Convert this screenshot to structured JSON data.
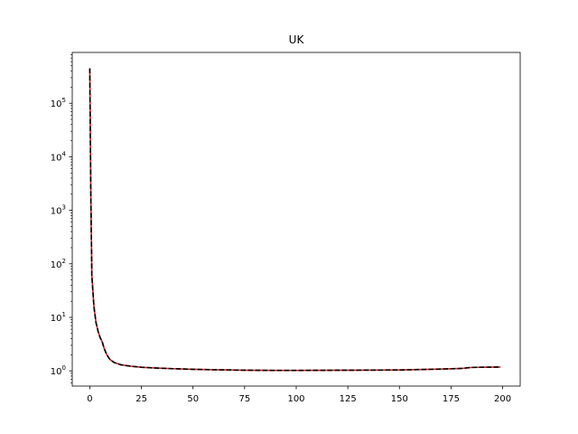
{
  "chart_data": {
    "type": "line",
    "title": "UK",
    "xlabel": "",
    "ylabel": "",
    "x_scale": "linear",
    "y_scale": "log",
    "xlim": [
      -8.5,
      208.5
    ],
    "ylim": [
      0.52,
      890000
    ],
    "x_ticks": [
      0,
      25,
      50,
      75,
      100,
      125,
      150,
      175,
      200
    ],
    "y_ticks": [
      {
        "value": 1,
        "label_base": "10",
        "label_exp": "0"
      },
      {
        "value": 10,
        "label_base": "10",
        "label_exp": "1"
      },
      {
        "value": 100,
        "label_base": "10",
        "label_exp": "2"
      },
      {
        "value": 1000,
        "label_base": "10",
        "label_exp": "3"
      },
      {
        "value": 10000,
        "label_base": "10",
        "label_exp": "4"
      },
      {
        "value": 100000,
        "label_base": "10",
        "label_exp": "5"
      }
    ],
    "grid": false,
    "legend": "none",
    "series": [
      {
        "style": "solid",
        "color": "#d62728",
        "x": [
          0,
          0.5,
          1,
          2,
          3,
          4,
          5,
          6,
          7,
          8,
          9,
          10,
          12,
          15,
          20,
          25,
          30,
          40,
          50,
          60,
          75,
          90,
          100,
          125,
          150,
          170,
          180,
          185,
          190,
          199
        ],
        "y": [
          450000,
          2000,
          60,
          16,
          8,
          5.5,
          4.2,
          3.5,
          2.6,
          2.1,
          1.8,
          1.6,
          1.42,
          1.3,
          1.22,
          1.17,
          1.14,
          1.1,
          1.07,
          1.05,
          1.03,
          1.02,
          1.02,
          1.03,
          1.04,
          1.08,
          1.11,
          1.16,
          1.17,
          1.18
        ]
      },
      {
        "style": "dashed",
        "color": "#000000",
        "x": [
          0,
          0.5,
          1,
          2,
          3,
          4,
          5,
          6,
          7,
          8,
          9,
          10,
          12,
          15,
          20,
          25,
          30,
          40,
          50,
          60,
          75,
          90,
          100,
          125,
          150,
          170,
          180,
          185,
          190,
          199
        ],
        "y": [
          450000,
          2000,
          60,
          16,
          8,
          5.5,
          4.2,
          3.5,
          2.6,
          2.1,
          1.8,
          1.6,
          1.42,
          1.3,
          1.22,
          1.17,
          1.14,
          1.1,
          1.07,
          1.05,
          1.03,
          1.02,
          1.02,
          1.03,
          1.04,
          1.08,
          1.11,
          1.16,
          1.17,
          1.18
        ]
      }
    ]
  }
}
